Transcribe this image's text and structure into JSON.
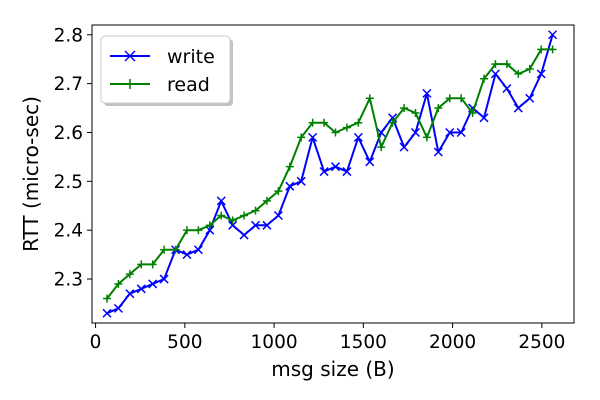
{
  "chart_data": {
    "type": "line",
    "title": "",
    "xlabel": "msg size (B)",
    "ylabel": "RTT (micro-sec)",
    "xlim": [
      -20,
      2680
    ],
    "ylim": [
      2.21,
      2.82
    ],
    "xticks": [
      0,
      500,
      1000,
      1500,
      2000,
      2500
    ],
    "yticks": [
      2.3,
      2.4,
      2.5,
      2.6,
      2.7,
      2.8
    ],
    "grid": false,
    "legend_position": "top-left",
    "x": [
      64,
      128,
      192,
      256,
      320,
      384,
      448,
      512,
      576,
      640,
      704,
      768,
      832,
      896,
      960,
      1024,
      1088,
      1152,
      1216,
      1280,
      1344,
      1408,
      1472,
      1536,
      1600,
      1664,
      1728,
      1792,
      1856,
      1920,
      1984,
      2048,
      2112,
      2176,
      2240,
      2304,
      2368,
      2432,
      2496,
      2560
    ],
    "series": [
      {
        "name": "write",
        "color": "#0000ff",
        "marker": "x",
        "values": [
          2.23,
          2.24,
          2.27,
          2.28,
          2.29,
          2.3,
          2.36,
          2.35,
          2.36,
          2.4,
          2.46,
          2.41,
          2.39,
          2.41,
          2.41,
          2.43,
          2.49,
          2.5,
          2.59,
          2.52,
          2.53,
          2.52,
          2.59,
          2.54,
          2.6,
          2.63,
          2.57,
          2.6,
          2.68,
          2.56,
          2.6,
          2.6,
          2.65,
          2.63,
          2.72,
          2.69,
          2.65,
          2.67,
          2.72,
          2.8
        ]
      },
      {
        "name": "read",
        "color": "#008000",
        "marker": "+",
        "values": [
          2.26,
          2.29,
          2.31,
          2.33,
          2.33,
          2.36,
          2.36,
          2.4,
          2.4,
          2.41,
          2.43,
          2.42,
          2.43,
          2.44,
          2.46,
          2.48,
          2.53,
          2.59,
          2.62,
          2.62,
          2.6,
          2.61,
          2.62,
          2.67,
          2.57,
          2.62,
          2.65,
          2.64,
          2.59,
          2.65,
          2.67,
          2.67,
          2.64,
          2.71,
          2.74,
          2.74,
          2.72,
          2.73,
          2.77,
          2.77
        ]
      }
    ]
  }
}
